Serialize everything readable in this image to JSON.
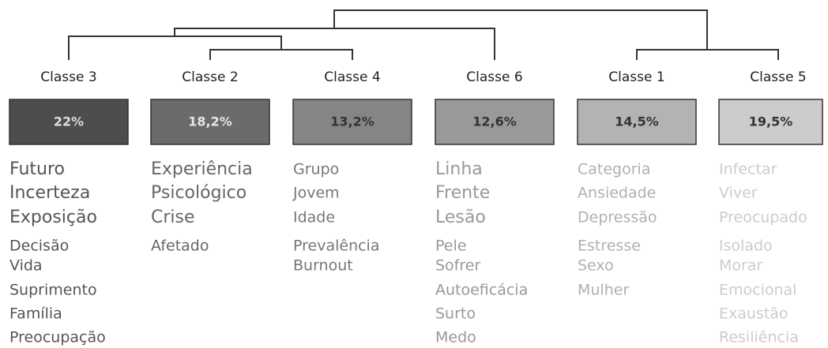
{
  "classes": [
    {
      "name": "Classe 3",
      "percent": "22%",
      "words": [
        "Futuro",
        "Incerteza",
        "Exposição",
        "Decisão",
        "Vida",
        "Suprimento",
        "Família",
        "Preocupação"
      ]
    },
    {
      "name": "Classe 2",
      "percent": "18,2%",
      "words": [
        "Experiência",
        "Psicológico",
        "Crise",
        "Afetado"
      ]
    },
    {
      "name": "Classe 4",
      "percent": "13,2%",
      "words": [
        "Grupo",
        "Jovem",
        "Idade",
        "Prevalência",
        "Burnout"
      ]
    },
    {
      "name": "Classe 6",
      "percent": "12,6%",
      "words": [
        "Linha",
        "Frente",
        "Lesão",
        "Pele",
        "Sofrer",
        "Autoeficácia",
        "Surto",
        "Medo"
      ]
    },
    {
      "name": "Classe 1",
      "percent": "14,5%",
      "words": [
        "Categoria",
        "Ansiedade",
        "Depressão",
        "Estresse",
        "Sexo",
        "Mulher"
      ]
    },
    {
      "name": "Classe 5",
      "percent": "19,5%",
      "words": [
        "Infectar",
        "Viver",
        "Preocupado",
        "Isolado",
        "Morar",
        "Emocional",
        "Exaustão",
        "Resiliência"
      ]
    }
  ]
}
